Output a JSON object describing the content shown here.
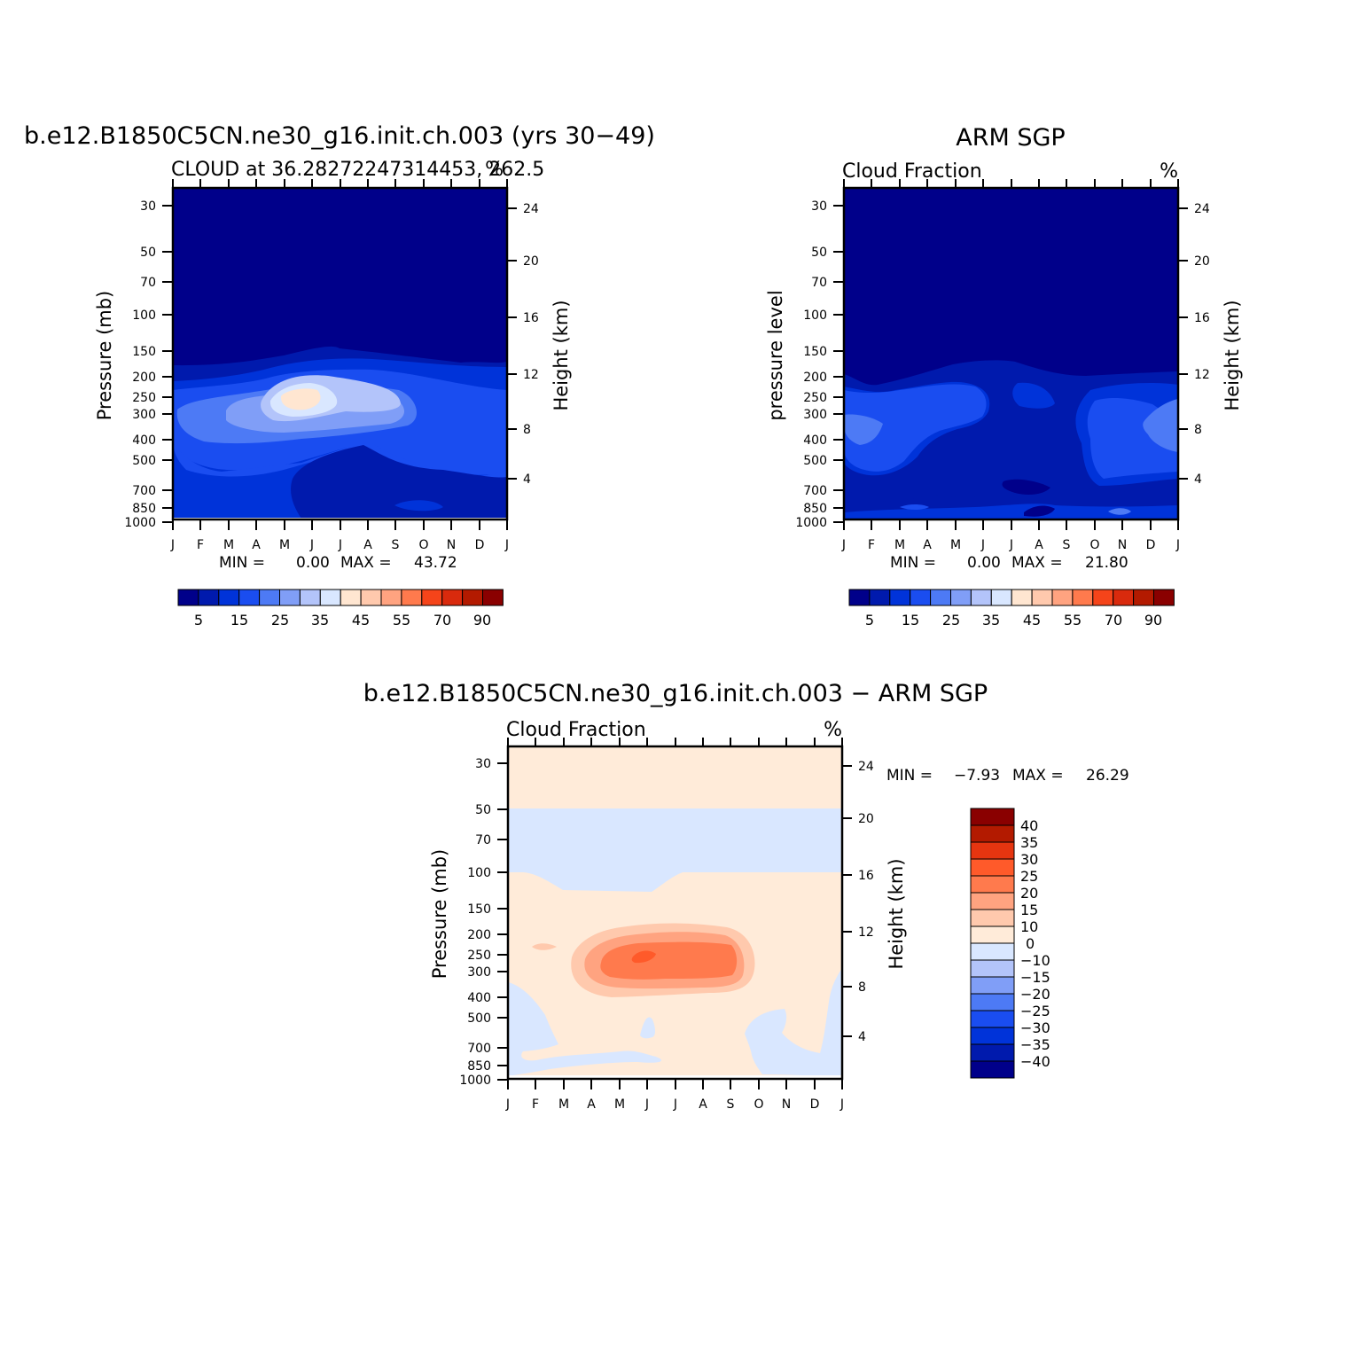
{
  "colors": {
    "abs_scale": [
      "#00008a",
      "#001aad",
      "#0033d9",
      "#1a4df0",
      "#4d7af5",
      "#809ef7",
      "#b3c4fa",
      "#d9e7ff",
      "#ffe6d1",
      "#ffc9ad",
      "#ffa380",
      "#ff7a4d",
      "#f5441a",
      "#d92a0d",
      "#b31a00",
      "#8a0000"
    ],
    "diff_scale": [
      "#00008a",
      "#001aad",
      "#0026c7",
      "#0033d9",
      "#1a4df0",
      "#4d7af5",
      "#809ef7",
      "#b3c4fa",
      "#d9e7ff",
      "#ffebd9",
      "#ffc9ad",
      "#ffa380",
      "#ff7a4d",
      "#ff5a2a",
      "#e63510",
      "#b31a00",
      "#8a0000"
    ]
  },
  "chart_data": [
    {
      "type": "contour",
      "title": "b.e12.B1850C5CN.ne30_g16.init.ch.003 (yrs 30−49)",
      "subtitle_left": "CLOUD at 36.28272247314453, 262.5",
      "subtitle_right": "%",
      "xlabel": "",
      "ylabel": "Pressure (mb)",
      "ylabel_right": "Height (km)",
      "x_ticks": [
        "J",
        "F",
        "M",
        "A",
        "M",
        "J",
        "J",
        "A",
        "S",
        "O",
        "N",
        "D",
        "J"
      ],
      "y_ticks": [
        "30",
        "50",
        "70",
        "100",
        "150",
        "200",
        "250",
        "300",
        "400",
        "500",
        "700",
        "850",
        "1000"
      ],
      "y_ticks_right": [
        "24",
        "20",
        "16",
        "12",
        "8",
        "4"
      ],
      "ylim": [
        1000,
        25
      ],
      "y_scale": "log",
      "min_label": "MIN =",
      "min_value": "0.00",
      "max_label": "MAX =",
      "max_value": "43.72",
      "colorbar_labels": [
        "5",
        "15",
        "25",
        "35",
        "45",
        "55",
        "70",
        "90"
      ],
      "colorbar_orientation": "horizontal"
    },
    {
      "type": "contour",
      "title": "ARM SGP",
      "subtitle_left": "Cloud Fraction",
      "subtitle_right": "%",
      "xlabel": "",
      "ylabel": "pressure level",
      "ylabel_right": "Height (km)",
      "x_ticks": [
        "J",
        "F",
        "M",
        "A",
        "M",
        "J",
        "J",
        "A",
        "S",
        "O",
        "N",
        "D",
        "J"
      ],
      "y_ticks": [
        "30",
        "50",
        "70",
        "100",
        "150",
        "200",
        "250",
        "300",
        "400",
        "500",
        "700",
        "850",
        "1000"
      ],
      "y_ticks_right": [
        "24",
        "20",
        "16",
        "12",
        "8",
        "4"
      ],
      "ylim": [
        1000,
        25
      ],
      "y_scale": "log",
      "min_label": "MIN =",
      "min_value": "0.00",
      "max_label": "MAX =",
      "max_value": "21.80",
      "colorbar_labels": [
        "5",
        "15",
        "25",
        "35",
        "45",
        "55",
        "70",
        "90"
      ],
      "colorbar_orientation": "horizontal"
    },
    {
      "type": "contour",
      "title": "b.e12.B1850C5CN.ne30_g16.init.ch.003 − ARM SGP",
      "subtitle_left": "Cloud Fraction",
      "subtitle_right": "%",
      "xlabel": "",
      "ylabel": "Pressure (mb)",
      "ylabel_right": "Height (km)",
      "x_ticks": [
        "J",
        "F",
        "M",
        "A",
        "M",
        "J",
        "J",
        "A",
        "S",
        "O",
        "N",
        "D",
        "J"
      ],
      "y_ticks": [
        "30",
        "50",
        "70",
        "100",
        "150",
        "200",
        "250",
        "300",
        "400",
        "500",
        "700",
        "850",
        "1000"
      ],
      "y_ticks_right": [
        "24",
        "20",
        "16",
        "12",
        "8",
        "4"
      ],
      "ylim": [
        1000,
        25
      ],
      "y_scale": "log",
      "min_label": "MIN =",
      "min_value": "−7.93",
      "max_label": "MAX =",
      "max_value": "26.29",
      "colorbar_labels": [
        "40",
        "35",
        "30",
        "25",
        "20",
        "15",
        "10",
        "0",
        "−10",
        "−15",
        "−20",
        "−25",
        "−30",
        "−35",
        "−40"
      ],
      "colorbar_orientation": "vertical"
    }
  ]
}
